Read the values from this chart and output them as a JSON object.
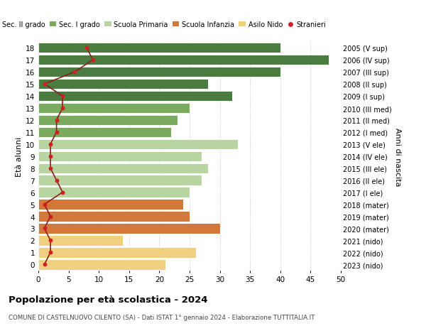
{
  "ages": [
    18,
    17,
    16,
    15,
    14,
    13,
    12,
    11,
    10,
    9,
    8,
    7,
    6,
    5,
    4,
    3,
    2,
    1,
    0
  ],
  "values": [
    40,
    48,
    40,
    28,
    32,
    25,
    23,
    22,
    33,
    27,
    28,
    27,
    25,
    24,
    25,
    30,
    14,
    26,
    21
  ],
  "stranieri": [
    8,
    9,
    6,
    1,
    4,
    4,
    3,
    3,
    2,
    2,
    2,
    3,
    4,
    1,
    2,
    1,
    2,
    2,
    1
  ],
  "right_labels": [
    "2005 (V sup)",
    "2006 (IV sup)",
    "2007 (III sup)",
    "2008 (II sup)",
    "2009 (I sup)",
    "2010 (III med)",
    "2011 (II med)",
    "2012 (I med)",
    "2013 (V ele)",
    "2014 (IV ele)",
    "2015 (III ele)",
    "2016 (II ele)",
    "2017 (I ele)",
    "2018 (mater)",
    "2019 (mater)",
    "2020 (mater)",
    "2021 (nido)",
    "2022 (nido)",
    "2023 (nido)"
  ],
  "bar_colors": [
    "#4a7c3f",
    "#4a7c3f",
    "#4a7c3f",
    "#4a7c3f",
    "#4a7c3f",
    "#7aab5e",
    "#7aab5e",
    "#7aab5e",
    "#b8d4a0",
    "#b8d4a0",
    "#b8d4a0",
    "#b8d4a0",
    "#b8d4a0",
    "#d4783a",
    "#d4783a",
    "#d4783a",
    "#f0d080",
    "#f0d080",
    "#f0d080"
  ],
  "legend_labels": [
    "Sec. II grado",
    "Sec. I grado",
    "Scuola Primaria",
    "Scuola Infanzia",
    "Asilo Nido",
    "Stranieri"
  ],
  "legend_colors": [
    "#4a7c3f",
    "#7aab5e",
    "#b8d4a0",
    "#d4783a",
    "#f0d080",
    "#cc2222"
  ],
  "ylabel_left": "Età alunni",
  "ylabel_right": "Anni di nascita",
  "title": "Popolazione per età scolastica - 2024",
  "subtitle": "COMUNE DI CASTELNUOVO CILENTO (SA) - Dati ISTAT 1° gennaio 2024 - Elaborazione TUTTITALIA.IT",
  "xlim": [
    0,
    50
  ],
  "stranieri_color": "#cc2222",
  "line_color": "#8b2020",
  "bg_color": "#ffffff"
}
